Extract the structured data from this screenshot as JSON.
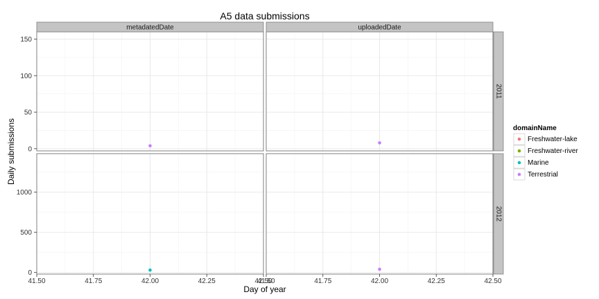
{
  "chart_data": {
    "type": "scatter",
    "title": "A5 data submissions",
    "xlabel": "Day of year",
    "ylabel": "Daily submissions",
    "grid": true,
    "legend_position": "right",
    "xlim": [
      41.5,
      42.5
    ],
    "x_ticks": [
      "41.50",
      "41.75",
      "42.00",
      "42.25",
      "42.50"
    ],
    "facet_columns": [
      "metadatedDate",
      "uploadedDate"
    ],
    "facet_rows": [
      "2011",
      "2012"
    ],
    "row_axes": [
      {
        "row": "2011",
        "ylim": [
          -3,
          160
        ],
        "ticks": [
          0,
          50,
          100,
          150
        ]
      },
      {
        "row": "2012",
        "ylim": [
          -20,
          1480
        ],
        "ticks": [
          0,
          500,
          1000
        ]
      }
    ],
    "legend": {
      "title": "domainName",
      "entries": [
        {
          "name": "Freshwater-lake",
          "color": "#F8766D"
        },
        {
          "name": "Freshwater-river",
          "color": "#7CAE00"
        },
        {
          "name": "Marine",
          "color": "#00BFC4"
        },
        {
          "name": "Terrestrial",
          "color": "#C77CFF"
        }
      ]
    },
    "points": [
      {
        "column": "metadatedDate",
        "row": "2011",
        "x": 42.0,
        "y": 4,
        "series": "Terrestrial"
      },
      {
        "column": "uploadedDate",
        "row": "2011",
        "x": 42.0,
        "y": 8,
        "series": "Terrestrial"
      },
      {
        "column": "metadatedDate",
        "row": "2012",
        "x": 42.0,
        "y": 30,
        "series": "Marine"
      },
      {
        "column": "uploadedDate",
        "row": "2012",
        "x": 42.0,
        "y": 40,
        "series": "Terrestrial"
      }
    ]
  }
}
